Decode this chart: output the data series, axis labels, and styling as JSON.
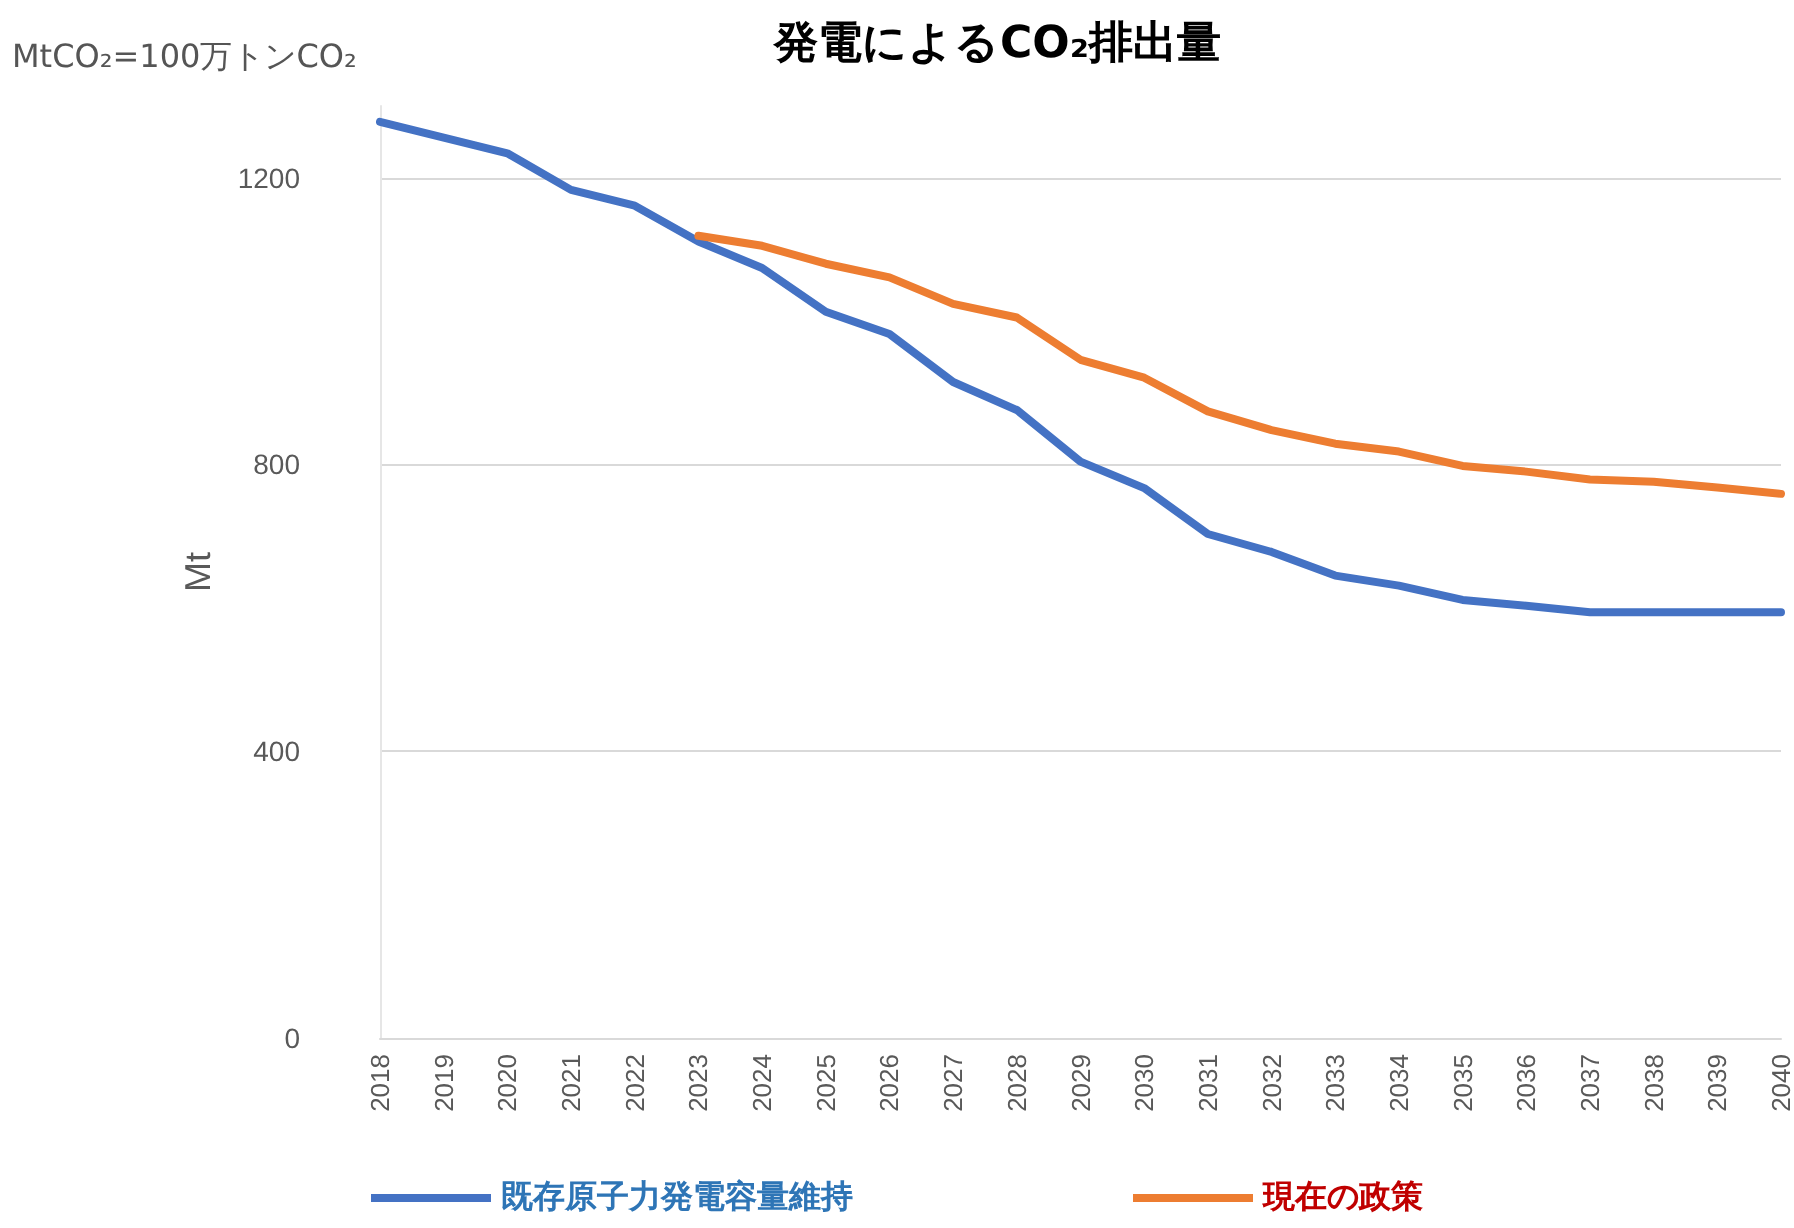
{
  "chart_data": {
    "type": "line",
    "title": "発電によるCO₂排出量",
    "ylabel": "Mt",
    "annotations": [
      "MtCO₂=100万トンCO₂"
    ],
    "categories": [
      "2018",
      "2019",
      "2020",
      "2021",
      "2022",
      "2023",
      "2024",
      "2025",
      "2026",
      "2027",
      "2028",
      "2029",
      "2030",
      "2031",
      "2032",
      "2033",
      "2034",
      "2035",
      "2036",
      "2037",
      "2038",
      "2039",
      "2040"
    ],
    "series": [
      {
        "name": "既存原子力発電容量維持",
        "color": "#4472c4",
        "values": [
          1278,
          1256,
          1234,
          1183,
          1161,
          1111,
          1074,
          1013,
          982,
          915,
          876,
          804,
          767,
          703,
          678,
          645,
          631,
          611,
          603,
          594,
          594,
          594,
          594
        ]
      },
      {
        "name": "現在の政策",
        "color": "#ed7d31",
        "values": [
          null,
          null,
          null,
          null,
          null,
          1119,
          1105,
          1080,
          1061,
          1024,
          1005,
          946,
          921,
          874,
          848,
          829,
          818,
          798,
          790,
          779,
          776,
          768,
          759
        ]
      }
    ],
    "ylim": [
      0,
      1300
    ],
    "yticks": [
      0,
      400,
      800,
      1200
    ],
    "grid": "y",
    "legend": "bottom",
    "marker": "none",
    "line_style": "solid"
  }
}
